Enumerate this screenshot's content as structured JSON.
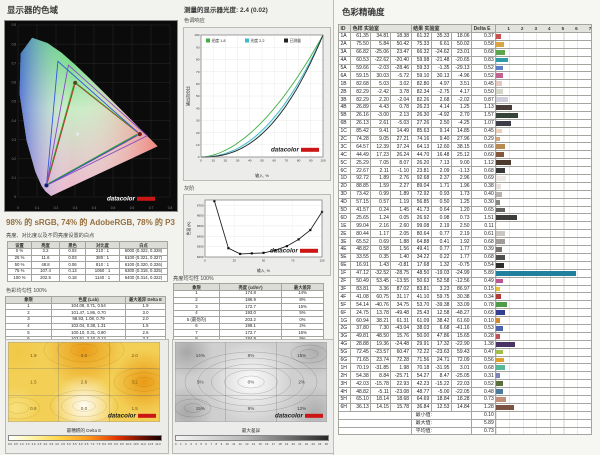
{
  "brand": {
    "logo_text": "datacolor",
    "accent": "#cc1515"
  },
  "left": {
    "gamut_title": "显示器的色域",
    "coverage_caption": "98% 的 sRGB, 74% 的 AdobeRGB, 78% 的 P3",
    "settings_intro": "亮度、对比度以及不同亮度设置的白点",
    "color_uniformity_header": "色彩均匀性 100%"
  },
  "middle": {
    "gamma_title": "测量的显示器光度: 2.4 (0.02)",
    "tone_label": "色调响应",
    "grayscale_label": "灰阶",
    "luminance_uniformity_header": "亮度均匀性 100%"
  },
  "right": {
    "accuracy_title": "色彩精确度"
  },
  "settings_table": {
    "headers": [
      "设置",
      "亮度",
      "黑色",
      "对比度",
      "白点"
    ],
    "rows": [
      [
        "0 %",
        "3.2",
        "0.02",
        "210 : 1",
        "6000 (0.322, 0.328)"
      ],
      [
        "25 %",
        "11.6",
        "0.03",
        "380 : 1",
        "6100 (0.321, 0.327)"
      ],
      [
        "50 %",
        "48.8",
        "0.06",
        "810 : 1",
        "6100 (0.320, 0.326)"
      ],
      [
        "75 %",
        "107.4",
        "0.13",
        "1050 : 1",
        "6300 (0.318, 0.325)"
      ],
      [
        "100 %",
        "202.5",
        "0.18",
        "1140 : 1",
        "6400 (0.314, 0.322)"
      ]
    ]
  },
  "color_uniformity_table": {
    "columns": [
      "象限",
      "色度 (Lab)",
      "最大差异 Delta E"
    ],
    "rows": [
      [
        "1",
        "104.08, 0.71, 0.54",
        "1.9"
      ],
      [
        "2",
        "101.47, 1.86, 0.70",
        "3.0"
      ],
      [
        "3",
        "98.93, 1.08, 0.79",
        "2.0"
      ],
      [
        "4",
        "102.04, 0.38, 1.31",
        "1.5"
      ],
      [
        "5",
        "100.10, 0.31, 0.80",
        "2.6"
      ],
      [
        "6",
        "103.51, 2.10, 0.13",
        "3.2"
      ],
      [
        "7",
        "98.94, 0.26, 0.73",
        "0.6"
      ],
      [
        "8 (最亮的)",
        "104.53, 0.86, 0.93",
        "0.0"
      ],
      [
        "9",
        "90.75, 0.86, 0.78",
        "1.5"
      ]
    ]
  },
  "luminance_uniformity_table": {
    "columns": [
      "象限",
      "亮度 (cd/m²)",
      "最大差异"
    ],
    "rows": [
      [
        "1",
        "174.8",
        "14%"
      ],
      [
        "2",
        "186.9",
        "8%"
      ],
      [
        "3",
        "172.7",
        "15%"
      ],
      [
        "4",
        "193.0",
        "5%"
      ],
      [
        "5 (最亮的)",
        "203.2",
        "0%"
      ],
      [
        "6",
        "199.1",
        "2%"
      ],
      [
        "7",
        "172.7",
        "15%"
      ],
      [
        "8",
        "184.9",
        "9%"
      ],
      [
        "9",
        "178.8",
        "12%"
      ]
    ]
  },
  "accuracy": {
    "columns": {
      "id": "ID",
      "sample": "色样 实验室",
      "result": "结果 实验室",
      "delta": "Delta E"
    },
    "bar_ticks": [
      "1",
      "2",
      "3",
      "4",
      "5",
      "6",
      "7"
    ],
    "rows": [
      {
        "id": "1A",
        "ref": [
          61.35,
          34.81,
          18.38
        ],
        "meas": [
          61.32,
          35.33,
          18.06
        ],
        "de": 0.37,
        "color": "#c9524e"
      },
      {
        "id": "2A",
        "ref": [
          75.5,
          5.84,
          50.42
        ],
        "meas": [
          75.33,
          6.61,
          50.02
        ],
        "de": 0.58,
        "color": "#d9a441"
      },
      {
        "id": "3A",
        "ref": [
          66.82,
          -25.06,
          23.47
        ],
        "meas": [
          66.32,
          -24.62,
          23.01
        ],
        "de": 0.68,
        "color": "#5ba54d"
      },
      {
        "id": "4A",
        "ref": [
          60.53,
          -22.62,
          -20.4
        ],
        "meas": [
          59.98,
          -21.48,
          -20.65
        ],
        "de": 0.83,
        "color": "#2f9aa8"
      },
      {
        "id": "5A",
        "ref": [
          59.66,
          -2.03,
          -28.46
        ],
        "meas": [
          59.33,
          -1.35,
          -29.13
        ],
        "de": 0.52,
        "color": "#5b7fc4"
      },
      {
        "id": "6A",
        "ref": [
          59.15,
          30.03,
          -5.72
        ],
        "meas": [
          59.1,
          30.13,
          -4.96
        ],
        "de": 0.52,
        "color": "#c2638f"
      },
      {
        "id": "1B",
        "ref": [
          82.68,
          5.03,
          3.02
        ],
        "meas": [
          82.8,
          4.97,
          3.51
        ],
        "de": 0.45,
        "color": "#e5cac4"
      },
      {
        "id": "2B",
        "ref": [
          82.29,
          -2.42,
          3.78
        ],
        "meas": [
          82.34,
          -2.75,
          4.17
        ],
        "de": 0.5,
        "color": "#d3d7ca"
      },
      {
        "id": "3B",
        "ref": [
          82.29,
          2.2,
          -2.04
        ],
        "meas": [
          82.26,
          2.68,
          -2.02
        ],
        "de": 0.87,
        "color": "#d2cfdd"
      },
      {
        "id": "4B",
        "ref": [
          26.89,
          4.43,
          0.78
        ],
        "meas": [
          26.23,
          4.14,
          1.25
        ],
        "de": 1.13,
        "color": "#463d3a"
      },
      {
        "id": "5B",
        "ref": [
          26.16,
          -3.0,
          2.13
        ],
        "meas": [
          26.3,
          -4.92,
          2.7
        ],
        "de": 1.57,
        "color": "#37423a"
      },
      {
        "id": "6B",
        "ref": [
          26.13,
          2.61,
          -5.03
        ],
        "meas": [
          27.26,
          2.5,
          -4.25
        ],
        "de": 1.07,
        "color": "#3d3c49"
      },
      {
        "id": "1C",
        "ref": [
          85.42,
          9.41,
          14.49
        ],
        "meas": [
          85.63,
          9.14,
          14.85
        ],
        "de": 0.45,
        "color": "#edd0b8"
      },
      {
        "id": "2C",
        "ref": [
          74.28,
          9.05,
          27.21
        ],
        "meas": [
          74.16,
          9.4,
          27.96
        ],
        "de": 0.29,
        "color": "#d2a87c"
      },
      {
        "id": "3C",
        "ref": [
          64.57,
          12.39,
          37.24
        ],
        "meas": [
          64.13,
          12.6,
          38.15
        ],
        "de": 0.66,
        "color": "#b98953"
      },
      {
        "id": "4C",
        "ref": [
          44.49,
          17.23,
          26.24
        ],
        "meas": [
          44.7,
          16.48,
          25.12
        ],
        "de": 0.6,
        "color": "#84573a"
      },
      {
        "id": "5C",
        "ref": [
          25.29,
          7.05,
          8.07
        ],
        "meas": [
          26.2,
          7.13,
          9.0
        ],
        "de": 1.12,
        "color": "#4c3a2f"
      },
      {
        "id": "6C",
        "ref": [
          22.67,
          2.11,
          -1.1
        ],
        "meas": [
          23.81,
          2.09,
          -1.13
        ],
        "de": 0.68,
        "color": "#3a3739"
      },
      {
        "id": "1D",
        "ref": [
          92.72,
          1.89,
          2.76
        ],
        "meas": [
          92.68,
          2.37,
          2.96
        ],
        "de": 0.69,
        "color": "#f0ebe6"
      },
      {
        "id": "2D",
        "ref": [
          88.85,
          1.59,
          2.27
        ],
        "meas": [
          89.04,
          1.71,
          1.96
        ],
        "de": 0.38,
        "color": "#e5e0db"
      },
      {
        "id": "3D",
        "ref": [
          73.42,
          0.99,
          1.89
        ],
        "meas": [
          72.92,
          0.93,
          1.73
        ],
        "de": 0.4,
        "color": "#b8b4b0"
      },
      {
        "id": "4D",
        "ref": [
          57.15,
          0.57,
          1.19
        ],
        "meas": [
          56.85,
          0.5,
          1.25
        ],
        "de": 0.3,
        "color": "#8b8885"
      },
      {
        "id": "5D",
        "ref": [
          41.57,
          0.24,
          1.45
        ],
        "meas": [
          41.73,
          0.64,
          1.2
        ],
        "de": 0.65,
        "color": "#636160"
      },
      {
        "id": "6D",
        "ref": [
          25.65,
          1.24,
          0.05
        ],
        "meas": [
          26.92,
          0.98,
          0.73
        ],
        "de": 1.51,
        "color": "#3f3d3c"
      },
      {
        "id": "1E",
        "ref": [
          99.04,
          2.16,
          2.6
        ],
        "meas": [
          99.08,
          2.19,
          2.5
        ],
        "de": 0.11,
        "color": "#fefaf5"
      },
      {
        "id": "2E",
        "ref": [
          80.44,
          1.17,
          2.05
        ],
        "meas": [
          80.64,
          0.77,
          2.19
        ],
        "de": 0.61,
        "color": "#cbc7c3"
      },
      {
        "id": "3E",
        "ref": [
          65.52,
          0.69,
          1.88
        ],
        "meas": [
          64.88,
          0.41,
          1.92
        ],
        "de": 0.68,
        "color": "#a09d9a"
      },
      {
        "id": "4E",
        "ref": [
          48.82,
          0.58,
          1.56
        ],
        "meas": [
          49.41,
          0.77,
          1.77
        ],
        "de": 0.39,
        "color": "#767371"
      },
      {
        "id": "5E",
        "ref": [
          33.55,
          0.35,
          1.4
        ],
        "meas": [
          34.22,
          0.22,
          1.77
        ],
        "de": 0.68,
        "color": "#504e4c"
      },
      {
        "id": "6E",
        "ref": [
          16.91,
          1.43,
          -0.81
        ],
        "meas": [
          17.68,
          1.32,
          -0.75
        ],
        "de": 0.54,
        "color": "#2c2b2d"
      },
      {
        "id": "1F",
        "ref": [
          47.12,
          -32.52,
          -28.75
        ],
        "meas": [
          48.5,
          -19.03,
          -24.99
        ],
        "de": 5.89,
        "color": "#21809d"
      },
      {
        "id": "2F",
        "ref": [
          50.49,
          53.45,
          -13.55
        ],
        "meas": [
          50.63,
          52.58,
          -12.56
        ],
        "de": 0.49,
        "color": "#bd5390"
      },
      {
        "id": "3F",
        "ref": [
          83.81,
          3.36,
          87.02
        ],
        "meas": [
          83.81,
          3.23,
          86.97
        ],
        "de": 0.15,
        "color": "#e8c32f"
      },
      {
        "id": "4F",
        "ref": [
          41.08,
          60.75,
          31.17
        ],
        "meas": [
          41.1,
          59.75,
          30.38
        ],
        "de": 0.34,
        "color": "#b23a38"
      },
      {
        "id": "5F",
        "ref": [
          54.14,
          -40.76,
          34.75
        ],
        "meas": [
          53.7,
          -39.38,
          33.09
        ],
        "de": 0.78,
        "color": "#4f9b47"
      },
      {
        "id": "6F",
        "ref": [
          24.75,
          13.78,
          -49.48
        ],
        "meas": [
          25.43,
          12.58,
          -48.27
        ],
        "de": 0.65,
        "color": "#343d90"
      },
      {
        "id": "1G",
        "ref": [
          60.94,
          38.21,
          61.31
        ],
        "meas": [
          61.09,
          38.42,
          61.6
        ],
        "de": 0.1,
        "color": "#d8882b"
      },
      {
        "id": "2G",
        "ref": [
          37.8,
          7.3,
          -43.04
        ],
        "meas": [
          38.03,
          6.68,
          -41.16
        ],
        "de": 0.53,
        "color": "#4c63ab"
      },
      {
        "id": "3G",
        "ref": [
          49.81,
          48.5,
          15.76
        ],
        "meas": [
          50.0,
          47.86,
          15.65
        ],
        "de": 0.28,
        "color": "#c25159"
      },
      {
        "id": "4G",
        "ref": [
          28.88,
          19.36,
          -24.48
        ],
        "meas": [
          29.91,
          17.32,
          -22.9
        ],
        "de": 1.38,
        "color": "#473263"
      },
      {
        "id": "5G",
        "ref": [
          72.45,
          -23.57,
          60.47
        ],
        "meas": [
          72.22,
          -23.63,
          59.43
        ],
        "de": 0.47,
        "color": "#a4bd4f"
      },
      {
        "id": "6G",
        "ref": [
          71.65,
          23.74,
          72.28
        ],
        "meas": [
          71.56,
          24.71,
          72.09
        ],
        "de": 0.56,
        "color": "#e0a02c"
      },
      {
        "id": "1H",
        "ref": [
          70.19,
          -31.85,
          1.98
        ],
        "meas": [
          70.18,
          -31.95,
          3.01
        ],
        "de": 0.68,
        "color": "#57b79b"
      },
      {
        "id": "2H",
        "ref": [
          54.38,
          8.84,
          -25.71
        ],
        "meas": [
          54.27,
          8.47,
          -25.05
        ],
        "de": 0.31,
        "color": "#7e84b9"
      },
      {
        "id": "3H",
        "ref": [
          42.03,
          -15.78,
          22.93
        ],
        "meas": [
          42.23,
          -15.22,
          22.03
        ],
        "de": 0.52,
        "color": "#5d6e3d"
      },
      {
        "id": "4H",
        "ref": [
          48.82,
          -5.11,
          -23.08
        ],
        "meas": [
          48.77,
          -5.0,
          -22.05
        ],
        "de": 0.48,
        "color": "#4c7a9c"
      },
      {
        "id": "5H",
        "ref": [
          65.1,
          18.14,
          18.68
        ],
        "meas": [
          64.69,
          18.84,
          18.28
        ],
        "de": 0.73,
        "color": "#c28f79"
      },
      {
        "id": "6H",
        "ref": [
          36.13,
          14.15,
          15.78
        ],
        "meas": [
          36.84,
          12.53,
          14.84
        ],
        "de": 1.28,
        "color": "#7b5343"
      }
    ],
    "summary": [
      {
        "label": "最小值:",
        "value": "0.10"
      },
      {
        "label": "最大值:",
        "value": "5.89"
      },
      {
        "label": "平均值:",
        "value": "0.73"
      }
    ]
  },
  "chart_data": [
    {
      "type": "scatter",
      "name": "gamut",
      "title": "显示器的色域",
      "xlabel": "x",
      "ylabel": "y",
      "xlim": [
        0,
        0.8
      ],
      "ylim": [
        0,
        0.9
      ],
      "coverage": {
        "sRGB": "98%",
        "AdobeRGB": "74%",
        "P3": "78%"
      },
      "white_point": [
        0.313,
        0.329
      ],
      "triangles": [
        {
          "name": "measured",
          "color": "#d42a2a",
          "points": [
            [
              0.641,
              0.329
            ],
            [
              0.301,
              0.597
            ],
            [
              0.15,
              0.061
            ]
          ]
        },
        {
          "name": "sRGB",
          "color": "#2aa82a",
          "points": [
            [
              0.637,
              0.334
            ],
            [
              0.298,
              0.603
            ],
            [
              0.148,
              0.064
            ]
          ]
        },
        {
          "name": "AdobeRGB",
          "color": "#3355e0",
          "points": [
            [
              0.64,
              0.33
            ],
            [
              0.21,
              0.71
            ],
            [
              0.15,
              0.06
            ]
          ]
        },
        {
          "name": "P3",
          "color": "#8a46c8",
          "points": [
            [
              0.68,
              0.32
            ],
            [
              0.265,
              0.69
            ],
            [
              0.15,
              0.06
            ]
          ]
        }
      ]
    },
    {
      "type": "line",
      "name": "tone_response",
      "title": "色调响应",
      "xlabel": "输入, %",
      "ylabel": "输出百分比",
      "xlim": [
        0,
        100
      ],
      "ylim": [
        0,
        100
      ],
      "series": [
        {
          "name": "光度 1.8",
          "color": "#3fae3f",
          "gamma": 1.8
        },
        {
          "name": "光度 2.2",
          "color": "#3fb8c9",
          "gamma": 2.2
        },
        {
          "name": "已测量",
          "color": "#222222",
          "gamma": 2.4
        }
      ]
    },
    {
      "type": "line",
      "name": "grayscale",
      "title": "灰阶",
      "xlabel": "输入, %",
      "ylabel": "色温 (K)",
      "xlim": [
        0,
        100
      ],
      "ylim": [
        6200,
        6750
      ],
      "yticks": [
        6200,
        6300,
        6400,
        6500,
        6600,
        6700
      ],
      "series": [
        {
          "name": "白点色温",
          "color": "#222222",
          "points": [
            [
              8,
              6740
            ],
            [
              20,
              6285
            ],
            [
              30,
              6230
            ],
            [
              40,
              6235
            ],
            [
              50,
              6240
            ],
            [
              60,
              6265
            ],
            [
              70,
              6305
            ],
            [
              80,
              6370
            ],
            [
              90,
              6460
            ],
            [
              100,
              6635
            ]
          ]
        }
      ]
    },
    {
      "type": "heatmap",
      "name": "color_uniformity_contour",
      "caption": "最糟糕的 Delta E",
      "grid": [
        [
          1.9,
          3.0,
          2.0
        ],
        [
          1.5,
          2.6,
          3.2
        ],
        [
          0.6,
          0.0,
          1.5
        ]
      ],
      "unit": "",
      "scale_min": 0,
      "scale_max": 12,
      "scale_step": 0.5,
      "decimals": 1
    },
    {
      "type": "heatmap",
      "name": "luminance_uniformity_contour",
      "caption": "最大差异",
      "grid": [
        [
          14,
          8,
          15
        ],
        [
          5,
          0,
          2
        ],
        [
          15,
          9,
          12
        ]
      ],
      "unit": "%",
      "scale_min": 0,
      "scale_max": 25,
      "scale_step": 1,
      "decimals": 0
    },
    {
      "type": "bar",
      "name": "delta_e_bars",
      "xlim": [
        0,
        7
      ],
      "note": "bar per accuracy row, length = Delta E, color = patch color",
      "values_source": "accuracy.rows"
    }
  ]
}
